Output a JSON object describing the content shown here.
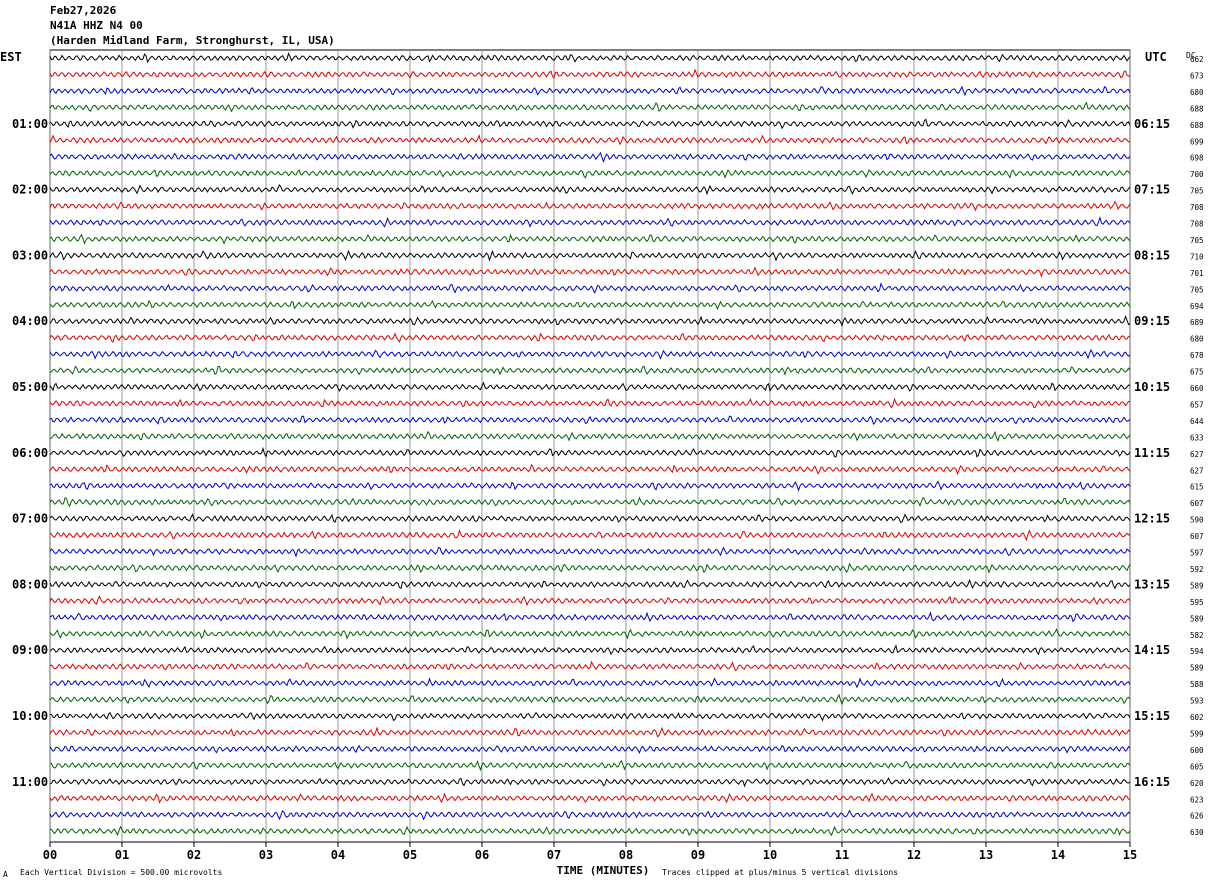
{
  "header": {
    "date": "Feb27,2026",
    "station": "N41A HHZ N4 00",
    "location": "(Harden Midland Farm, Stronghurst, IL, USA)"
  },
  "chart_data": {
    "type": "line",
    "title": "Feb27,2026",
    "xlabel": "TIME (MINUTES)",
    "x_range": [
      0,
      15
    ],
    "x_ticks": [
      "00",
      "01",
      "02",
      "03",
      "04",
      "05",
      "06",
      "07",
      "08",
      "09",
      "10",
      "11",
      "12",
      "13",
      "14",
      "15"
    ],
    "left_axis_label": "EST",
    "right_axis_label": "UTC",
    "dc_label": "DC",
    "left_hour_labels": [
      "01:00",
      "02:00",
      "03:00",
      "04:00",
      "05:00",
      "06:00",
      "07:00",
      "08:00",
      "09:00",
      "10:00",
      "11:00"
    ],
    "right_hour_labels": [
      "06:15",
      "07:15",
      "08:15",
      "09:15",
      "10:15",
      "11:15",
      "12:15",
      "13:15",
      "14:15",
      "15:15",
      "16:15"
    ],
    "trace_colors": [
      "#000000",
      "#dd0000",
      "#0000cc",
      "#006400"
    ],
    "trace_count": 48,
    "dc_offsets": [
      662,
      673,
      680,
      688,
      688,
      699,
      698,
      700,
      705,
      708,
      708,
      705,
      710,
      701,
      705,
      694,
      689,
      680,
      678,
      675,
      660,
      657,
      644,
      633,
      627,
      627,
      615,
      607,
      590,
      607,
      597,
      592,
      589,
      595,
      589,
      582,
      594,
      589,
      588,
      593,
      602,
      599,
      600,
      605,
      620,
      623,
      626,
      630
    ],
    "grid": true
  },
  "footer": {
    "left_mark": "A",
    "scale_note": "Each Vertical Division =  500.00 microvolts",
    "clip_note": "Traces clipped at plus/minus 5 vertical divisions"
  }
}
